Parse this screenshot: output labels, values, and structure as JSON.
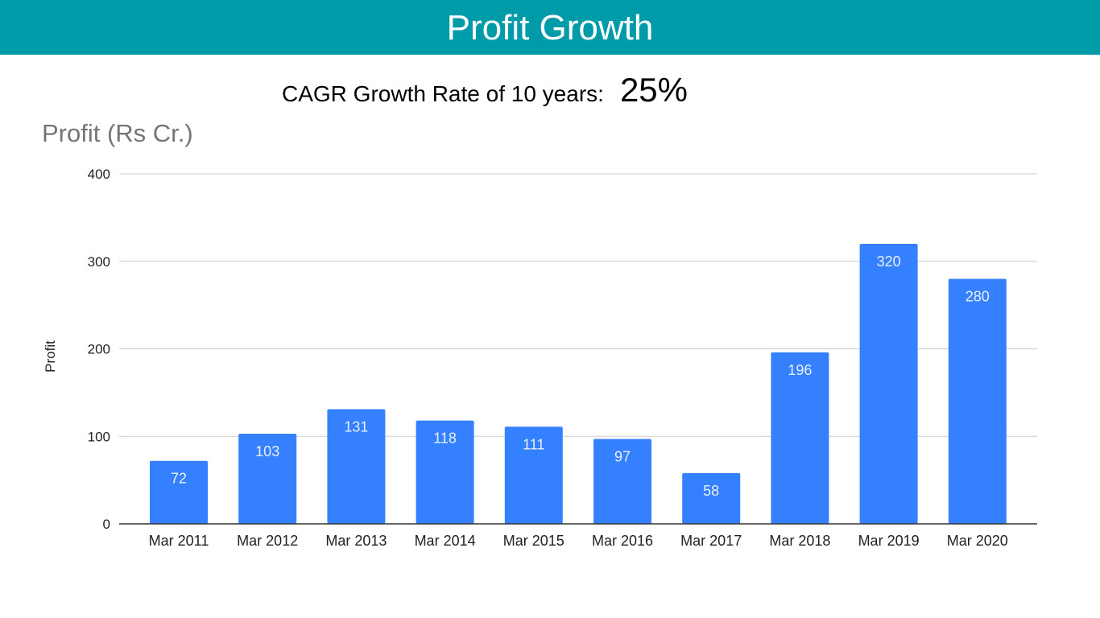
{
  "header": {
    "title": "Profit Growth"
  },
  "cagr": {
    "label": "CAGR Growth Rate of 10 years:",
    "value": "25%"
  },
  "chart_data": {
    "type": "bar",
    "title": "Profit (Rs Cr.)",
    "xlabel": "",
    "ylabel": "Profit",
    "ylim": [
      0,
      400
    ],
    "yticks": [
      0,
      100,
      200,
      300,
      400
    ],
    "grid": true,
    "categories": [
      "Mar 2011",
      "Mar 2012",
      "Mar 2013",
      "Mar 2014",
      "Mar 2015",
      "Mar 2016",
      "Mar 2017",
      "Mar 2018",
      "Mar 2019",
      "Mar 2020"
    ],
    "values": [
      72,
      103,
      131,
      118,
      111,
      97,
      58,
      196,
      320,
      280
    ],
    "data_labels": [
      "72",
      "103",
      "131",
      "118",
      "111",
      "97",
      "58",
      "196",
      "320",
      "280"
    ],
    "bar_color": "#3580ff",
    "header_color": "#009ba9"
  }
}
